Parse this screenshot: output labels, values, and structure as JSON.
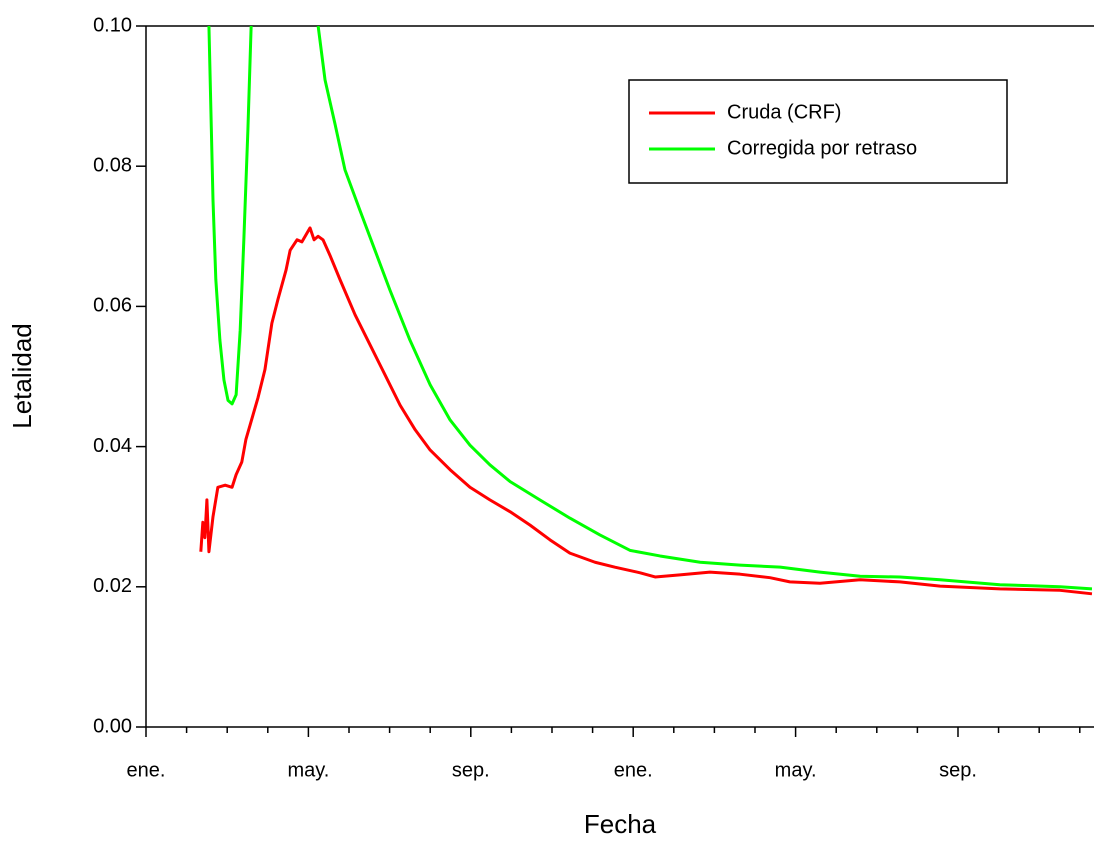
{
  "chart_data": {
    "type": "line",
    "xlabel": "Fecha",
    "ylabel": "Letalidad",
    "xlim": [
      0,
      23.35
    ],
    "xticks": [
      {
        "value": 0,
        "label": "ene."
      },
      {
        "value": 4,
        "label": "may."
      },
      {
        "value": 8,
        "label": "sep."
      },
      {
        "value": 12,
        "label": "ene."
      },
      {
        "value": 16,
        "label": "may."
      },
      {
        "value": 20,
        "label": "sep."
      }
    ],
    "xminorticks": [
      1,
      2,
      3,
      5,
      6,
      7,
      9,
      10,
      11,
      13,
      14,
      15,
      17,
      18,
      19,
      21,
      22,
      23
    ],
    "ylim": [
      0,
      0.1
    ],
    "yticks": [
      {
        "value": 0,
        "label": "0.00"
      },
      0.02,
      0.04,
      0.06,
      0.08,
      {
        "value": 0.1,
        "label": "0.10"
      }
    ],
    "legend": "upper right",
    "series": [
      {
        "name": "Cruda (CRF)",
        "color": "#ff0000",
        "x": [
          1.35,
          1.4,
          1.45,
          1.5,
          1.55,
          1.65,
          1.77,
          1.95,
          2.12,
          2.22,
          2.36,
          2.46,
          2.61,
          2.76,
          2.93,
          3.1,
          3.25,
          3.45,
          3.55,
          3.72,
          3.84,
          3.94,
          4.04,
          4.14,
          4.24,
          4.36,
          4.53,
          4.78,
          5.15,
          5.52,
          5.89,
          6.26,
          6.63,
          7.0,
          7.49,
          7.98,
          8.47,
          8.97,
          9.46,
          9.95,
          10.44,
          11.06,
          11.55,
          12.17,
          12.54,
          13.15,
          13.89,
          14.63,
          15.37,
          15.86,
          16.6,
          17.59,
          18.57,
          19.56,
          21.03,
          22.51,
          23.3
        ],
        "values": [
          0.025,
          0.0292,
          0.027,
          0.0324,
          0.025,
          0.03,
          0.0342,
          0.0345,
          0.0342,
          0.036,
          0.0378,
          0.041,
          0.044,
          0.047,
          0.051,
          0.0576,
          0.061,
          0.0652,
          0.068,
          0.0695,
          0.0692,
          0.0702,
          0.0712,
          0.0695,
          0.07,
          0.0695,
          0.0673,
          0.0638,
          0.0588,
          0.0545,
          0.0502,
          0.0459,
          0.0424,
          0.0395,
          0.0367,
          0.0342,
          0.0324,
          0.0307,
          0.0288,
          0.0267,
          0.0248,
          0.0235,
          0.0228,
          0.022,
          0.0214,
          0.0217,
          0.0221,
          0.0218,
          0.0213,
          0.0207,
          0.0205,
          0.021,
          0.0207,
          0.0201,
          0.0197,
          0.0195,
          0.019
        ]
      },
      {
        "name": "Corregida por retraso",
        "color": "#00ff00",
        "x": [
          1.55,
          1.65,
          1.72,
          1.82,
          1.92,
          2.02,
          2.12,
          2.22,
          2.32,
          2.41,
          2.51,
          2.59,
          null,
          4.24,
          4.41,
          4.66,
          4.9,
          5.27,
          5.64,
          6.01,
          6.5,
          7.0,
          7.49,
          7.98,
          8.47,
          8.97,
          9.7,
          10.44,
          11.18,
          11.92,
          12.66,
          13.65,
          14.63,
          15.62,
          16.6,
          17.59,
          18.57,
          19.56,
          21.03,
          22.51,
          23.3
        ],
        "values": [
          0.1,
          0.0752,
          0.0638,
          0.0552,
          0.0495,
          0.0466,
          0.0461,
          0.0474,
          0.0566,
          0.0695,
          0.0852,
          0.1,
          null,
          0.1,
          0.0923,
          0.0859,
          0.0795,
          0.0737,
          0.068,
          0.0623,
          0.0552,
          0.0488,
          0.0438,
          0.0402,
          0.0374,
          0.035,
          0.0324,
          0.0298,
          0.0274,
          0.0252,
          0.0244,
          0.0235,
          0.0231,
          0.0228,
          0.0221,
          0.0215,
          0.0214,
          0.021,
          0.0203,
          0.02,
          0.0197
        ]
      }
    ]
  }
}
